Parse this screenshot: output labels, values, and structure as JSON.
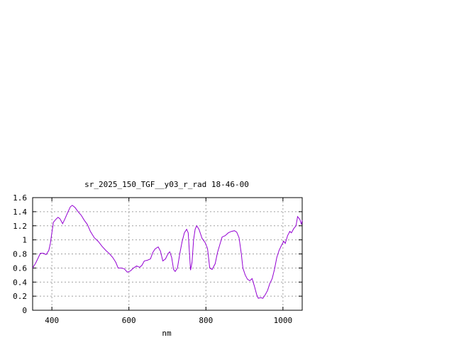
{
  "chart_data": {
    "type": "line",
    "title": "sr_2025_150_TGF__y03_r_rad 18-46-00",
    "xlabel": "nm",
    "ylabel": "",
    "xlim": [
      350,
      1050
    ],
    "ylim": [
      0,
      1.6
    ],
    "xticks": [
      400,
      600,
      800,
      1000
    ],
    "yticks": [
      0,
      0.2,
      0.4,
      0.6,
      0.8,
      1,
      1.2,
      1.4,
      1.6
    ],
    "xtick_labels": [
      "400",
      "600",
      "800",
      "1000"
    ],
    "ytick_labels": [
      "0",
      "0.2",
      "0.4",
      "0.6",
      "0.8",
      "1",
      "1.2",
      "1.4",
      "1.6"
    ],
    "grid": true,
    "line_color": "#9400d3",
    "series": [
      {
        "points": [
          [
            350,
            0.6
          ],
          [
            358,
            0.67
          ],
          [
            365,
            0.75
          ],
          [
            370,
            0.81
          ],
          [
            378,
            0.81
          ],
          [
            385,
            0.79
          ],
          [
            392,
            0.85
          ],
          [
            396,
            0.95
          ],
          [
            400,
            1.1
          ],
          [
            404,
            1.25
          ],
          [
            410,
            1.29
          ],
          [
            416,
            1.32
          ],
          [
            421,
            1.3
          ],
          [
            428,
            1.23
          ],
          [
            434,
            1.3
          ],
          [
            442,
            1.4
          ],
          [
            448,
            1.47
          ],
          [
            453,
            1.49
          ],
          [
            460,
            1.46
          ],
          [
            468,
            1.4
          ],
          [
            476,
            1.35
          ],
          [
            484,
            1.28
          ],
          [
            492,
            1.22
          ],
          [
            500,
            1.12
          ],
          [
            510,
            1.03
          ],
          [
            520,
            0.98
          ],
          [
            530,
            0.91
          ],
          [
            540,
            0.85
          ],
          [
            550,
            0.8
          ],
          [
            558,
            0.75
          ],
          [
            566,
            0.68
          ],
          [
            572,
            0.6
          ],
          [
            580,
            0.6
          ],
          [
            588,
            0.59
          ],
          [
            596,
            0.54
          ],
          [
            604,
            0.56
          ],
          [
            612,
            0.6
          ],
          [
            620,
            0.63
          ],
          [
            628,
            0.61
          ],
          [
            634,
            0.64
          ],
          [
            640,
            0.7
          ],
          [
            648,
            0.71
          ],
          [
            656,
            0.73
          ],
          [
            662,
            0.82
          ],
          [
            668,
            0.87
          ],
          [
            676,
            0.9
          ],
          [
            682,
            0.84
          ],
          [
            688,
            0.7
          ],
          [
            695,
            0.73
          ],
          [
            702,
            0.81
          ],
          [
            706,
            0.83
          ],
          [
            711,
            0.75
          ],
          [
            716,
            0.58
          ],
          [
            720,
            0.55
          ],
          [
            726,
            0.6
          ],
          [
            732,
            0.8
          ],
          [
            738,
            0.97
          ],
          [
            744,
            1.1
          ],
          [
            750,
            1.15
          ],
          [
            754,
            1.1
          ],
          [
            760,
            0.57
          ],
          [
            764,
            0.68
          ],
          [
            768,
            1.0
          ],
          [
            772,
            1.15
          ],
          [
            776,
            1.2
          ],
          [
            782,
            1.15
          ],
          [
            790,
            1.02
          ],
          [
            798,
            0.96
          ],
          [
            804,
            0.88
          ],
          [
            810,
            0.6
          ],
          [
            816,
            0.58
          ],
          [
            824,
            0.66
          ],
          [
            830,
            0.82
          ],
          [
            836,
            0.93
          ],
          [
            842,
            1.04
          ],
          [
            850,
            1.06
          ],
          [
            858,
            1.1
          ],
          [
            866,
            1.12
          ],
          [
            874,
            1.13
          ],
          [
            880,
            1.11
          ],
          [
            886,
            1.03
          ],
          [
            892,
            0.8
          ],
          [
            896,
            0.6
          ],
          [
            902,
            0.5
          ],
          [
            908,
            0.44
          ],
          [
            914,
            0.42
          ],
          [
            920,
            0.45
          ],
          [
            926,
            0.34
          ],
          [
            932,
            0.22
          ],
          [
            936,
            0.17
          ],
          [
            942,
            0.18
          ],
          [
            948,
            0.17
          ],
          [
            954,
            0.22
          ],
          [
            960,
            0.28
          ],
          [
            966,
            0.38
          ],
          [
            972,
            0.45
          ],
          [
            978,
            0.58
          ],
          [
            984,
            0.75
          ],
          [
            990,
            0.85
          ],
          [
            996,
            0.92
          ],
          [
            1002,
            0.98
          ],
          [
            1006,
            0.95
          ],
          [
            1012,
            1.06
          ],
          [
            1018,
            1.12
          ],
          [
            1022,
            1.1
          ],
          [
            1028,
            1.16
          ],
          [
            1034,
            1.2
          ],
          [
            1038,
            1.33
          ],
          [
            1044,
            1.29
          ],
          [
            1048,
            1.22
          ],
          [
            1050,
            1.28
          ]
        ]
      }
    ]
  }
}
